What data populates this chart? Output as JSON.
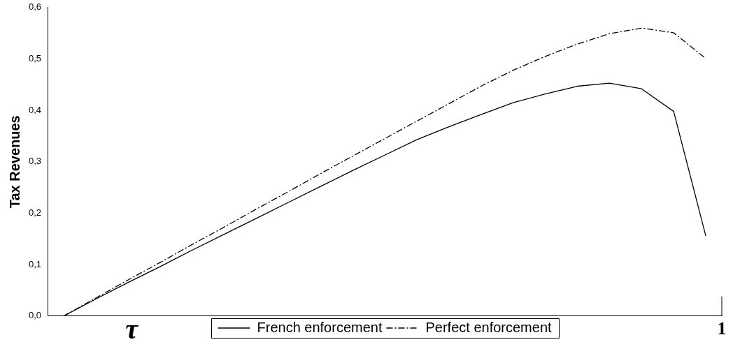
{
  "chart_data": {
    "type": "line",
    "xlabel": "τ",
    "ylabel": "Tax Revenues",
    "annotations": [
      "1"
    ],
    "categories": [
      null,
      null,
      null,
      null,
      null,
      null,
      null,
      null,
      null,
      null,
      null,
      null,
      null,
      null,
      null,
      null,
      null,
      null,
      null,
      null,
      null
    ],
    "series": [
      {
        "name": "French enforcement",
        "color": "#000000",
        "line_style": "solid",
        "values": [
          0,
          0.033,
          0.065,
          0.096,
          0.128,
          0.159,
          0.19,
          0.221,
          0.252,
          0.283,
          0.313,
          0.343,
          0.368,
          0.392,
          0.415,
          0.432,
          0.447,
          0.453,
          0.442,
          0.398,
          0.156
        ]
      },
      {
        "name": "Perfect enforcement",
        "color": "#000000",
        "line_style": "dashdot",
        "values": [
          0,
          0.035,
          0.07,
          0.104,
          0.139,
          0.173,
          0.208,
          0.242,
          0.277,
          0.311,
          0.345,
          0.379,
          0.413,
          0.447,
          0.478,
          0.505,
          0.529,
          0.549,
          0.56,
          0.551,
          0.501
        ]
      }
    ],
    "ylim": [
      0,
      0.6
    ],
    "yticks": [
      {
        "value": 0,
        "label": "0,0"
      },
      {
        "value": 0.1,
        "label": "0,1"
      },
      {
        "value": 0.2,
        "label": "0,2"
      },
      {
        "value": 0.3,
        "label": "0,3"
      },
      {
        "value": 0.4,
        "label": "0,4"
      },
      {
        "value": 0.5,
        "label": "0,5"
      },
      {
        "value": 0.6,
        "label": "0,6"
      }
    ],
    "grid": false,
    "legend": "bottom",
    "marker": "none"
  }
}
